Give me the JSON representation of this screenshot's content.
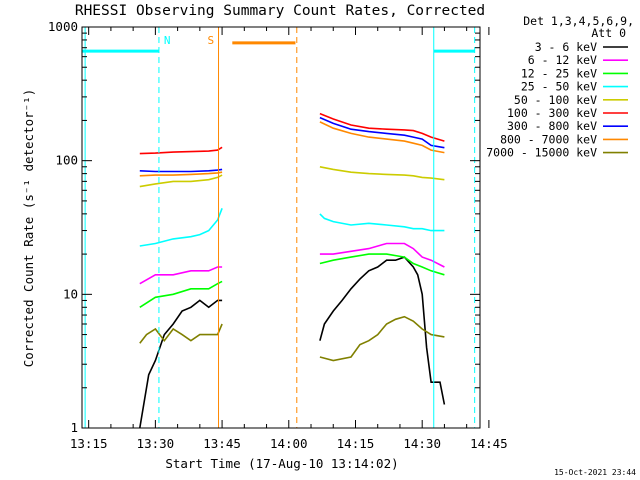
{
  "chart_data": {
    "type": "line",
    "title": "RHESSI Observing Summary Count Rates, Corrected",
    "xlabel": "Start Time (17-Aug-10 13:14:02)",
    "ylabel": "Corrected Count Rate (s⁻¹ detector⁻¹)",
    "y_scale": "log",
    "ylim": [
      1,
      1000
    ],
    "xlim_minutes": [
      13.5,
      103.0
    ],
    "x_ticks": [
      "13:15",
      "13:30",
      "13:45",
      "14:00",
      "14:15",
      "14:30",
      "14:45"
    ],
    "x_tick_minutes": [
      15,
      30,
      45,
      60,
      75,
      90,
      105
    ],
    "y_ticks": [
      "1",
      "10",
      "100",
      "1000"
    ],
    "y_tick_values": [
      1,
      10,
      100,
      1000
    ],
    "legend_header": [
      "Det 1,3,4,5,6,9,",
      "Att 0"
    ],
    "legend_placement": "right",
    "timestamp": "15-Oct-2021 23:44",
    "series": [
      {
        "name": "3 - 6 keV",
        "color": "#000000",
        "points": [
          [
            26.5,
            1.0
          ],
          [
            28.5,
            2.5
          ],
          [
            30,
            3.2
          ],
          [
            32,
            5
          ],
          [
            34,
            6
          ],
          [
            36,
            7.5
          ],
          [
            38,
            8
          ],
          [
            40,
            9
          ],
          [
            42,
            8
          ],
          [
            44,
            9
          ],
          [
            45,
            9
          ],
          [
            46.5,
            null
          ],
          [
            67,
            4.5
          ],
          [
            68,
            6
          ],
          [
            70,
            7.5
          ],
          [
            72,
            9
          ],
          [
            74,
            11
          ],
          [
            76,
            13
          ],
          [
            78,
            15
          ],
          [
            80,
            16
          ],
          [
            82,
            18
          ],
          [
            84,
            18
          ],
          [
            86,
            19
          ],
          [
            88,
            16
          ],
          [
            89,
            14
          ],
          [
            90,
            10
          ],
          [
            91,
            4
          ],
          [
            92,
            2.2
          ],
          [
            94,
            2.2
          ],
          [
            95,
            1.5
          ]
        ]
      },
      {
        "name": "6 - 12 keV",
        "color": "#ff00ff",
        "points": [
          [
            26.5,
            12
          ],
          [
            30,
            14
          ],
          [
            34,
            14
          ],
          [
            38,
            15
          ],
          [
            42,
            15
          ],
          [
            44,
            16
          ],
          [
            45,
            16
          ],
          [
            46.5,
            null
          ],
          [
            67,
            20
          ],
          [
            70,
            20
          ],
          [
            74,
            21
          ],
          [
            78,
            22
          ],
          [
            82,
            24
          ],
          [
            86,
            24
          ],
          [
            88,
            22
          ],
          [
            90,
            19
          ],
          [
            92,
            18
          ],
          [
            95,
            16
          ]
        ]
      },
      {
        "name": "12 - 25 keV",
        "color": "#00ff00",
        "points": [
          [
            26.5,
            8
          ],
          [
            30,
            9.5
          ],
          [
            34,
            10
          ],
          [
            38,
            11
          ],
          [
            42,
            11
          ],
          [
            44,
            12
          ],
          [
            45,
            12.5
          ],
          [
            46.5,
            null
          ],
          [
            67,
            17
          ],
          [
            70,
            18
          ],
          [
            74,
            19
          ],
          [
            78,
            20
          ],
          [
            82,
            20
          ],
          [
            86,
            19
          ],
          [
            88,
            17
          ],
          [
            90,
            16
          ],
          [
            92,
            15
          ],
          [
            95,
            14
          ]
        ]
      },
      {
        "name": "25 - 50 keV",
        "color": "#00ffff",
        "points": [
          [
            26.5,
            23
          ],
          [
            30,
            24
          ],
          [
            34,
            26
          ],
          [
            38,
            27
          ],
          [
            40,
            28
          ],
          [
            42,
            30
          ],
          [
            44,
            36
          ],
          [
            45,
            44
          ],
          [
            46.5,
            null
          ],
          [
            67,
            40
          ],
          [
            68,
            37
          ],
          [
            70,
            35
          ],
          [
            74,
            33
          ],
          [
            78,
            34
          ],
          [
            82,
            33
          ],
          [
            86,
            32
          ],
          [
            88,
            31
          ],
          [
            90,
            31
          ],
          [
            92,
            30
          ],
          [
            95,
            30
          ]
        ]
      },
      {
        "name": "50 - 100 keV",
        "color": "#cccc00",
        "points": [
          [
            26.5,
            64
          ],
          [
            30,
            67
          ],
          [
            34,
            70
          ],
          [
            38,
            70
          ],
          [
            42,
            72
          ],
          [
            44,
            75
          ],
          [
            45,
            78
          ],
          [
            46.5,
            null
          ],
          [
            67,
            90
          ],
          [
            70,
            86
          ],
          [
            74,
            82
          ],
          [
            78,
            80
          ],
          [
            82,
            79
          ],
          [
            86,
            78
          ],
          [
            88,
            77
          ],
          [
            90,
            75
          ],
          [
            92,
            74
          ],
          [
            95,
            72
          ]
        ]
      },
      {
        "name": "100 - 300 keV",
        "color": "#ff0000",
        "points": [
          [
            26.5,
            113
          ],
          [
            30,
            114
          ],
          [
            34,
            116
          ],
          [
            38,
            117
          ],
          [
            42,
            118
          ],
          [
            44,
            120
          ],
          [
            45,
            126
          ],
          [
            46.5,
            null
          ],
          [
            67,
            225
          ],
          [
            70,
            205
          ],
          [
            74,
            185
          ],
          [
            78,
            175
          ],
          [
            82,
            172
          ],
          [
            86,
            170
          ],
          [
            88,
            168
          ],
          [
            90,
            160
          ],
          [
            92,
            150
          ],
          [
            95,
            140
          ]
        ]
      },
      {
        "name": "300 - 800 keV",
        "color": "#0000ff",
        "points": [
          [
            26.5,
            84
          ],
          [
            30,
            83
          ],
          [
            34,
            83
          ],
          [
            38,
            83
          ],
          [
            42,
            84
          ],
          [
            44,
            85
          ],
          [
            45,
            86
          ],
          [
            46.5,
            null
          ],
          [
            67,
            210
          ],
          [
            70,
            190
          ],
          [
            74,
            172
          ],
          [
            78,
            165
          ],
          [
            82,
            160
          ],
          [
            86,
            155
          ],
          [
            88,
            150
          ],
          [
            90,
            145
          ],
          [
            92,
            130
          ],
          [
            95,
            125
          ]
        ]
      },
      {
        "name": "800 - 7000 keV",
        "color": "#ff8800",
        "points": [
          [
            26.5,
            77
          ],
          [
            30,
            78
          ],
          [
            34,
            78
          ],
          [
            38,
            79
          ],
          [
            42,
            80
          ],
          [
            44,
            81
          ],
          [
            45,
            82
          ],
          [
            46.5,
            null
          ],
          [
            67,
            195
          ],
          [
            70,
            175
          ],
          [
            74,
            160
          ],
          [
            78,
            150
          ],
          [
            82,
            145
          ],
          [
            86,
            140
          ],
          [
            88,
            135
          ],
          [
            90,
            130
          ],
          [
            92,
            120
          ],
          [
            95,
            115
          ]
        ]
      },
      {
        "name": "7000 - 15000 keV",
        "color": "#808000",
        "points": [
          [
            26.5,
            4.3
          ],
          [
            28,
            5
          ],
          [
            30,
            5.5
          ],
          [
            32,
            4.5
          ],
          [
            34,
            5.5
          ],
          [
            36,
            5
          ],
          [
            38,
            4.5
          ],
          [
            40,
            5
          ],
          [
            42,
            5
          ],
          [
            44,
            5
          ],
          [
            45,
            6
          ],
          [
            46.5,
            null
          ],
          [
            67,
            3.4
          ],
          [
            70,
            3.2
          ],
          [
            74,
            3.4
          ],
          [
            76,
            4.2
          ],
          [
            78,
            4.5
          ],
          [
            80,
            5
          ],
          [
            82,
            6
          ],
          [
            84,
            6.5
          ],
          [
            86,
            6.8
          ],
          [
            88,
            6.3
          ],
          [
            90,
            5.5
          ],
          [
            92,
            5
          ],
          [
            95,
            4.8
          ]
        ]
      }
    ],
    "annotations": [
      {
        "label": "N",
        "color": "#00ffff",
        "x_minutes": 30.8
      },
      {
        "label": "S",
        "color": "#ff8800",
        "x_minutes": 44.2
      }
    ],
    "flag_bars": [
      {
        "color": "#00ffff",
        "x0": 13.5,
        "x1": 30.8,
        "y": 660
      },
      {
        "color": "#ff8800",
        "x0": 47.3,
        "x1": 61.5,
        "y": 760
      },
      {
        "color": "#00ffff",
        "x0": 92.6,
        "x1": 101.8,
        "y": 660
      }
    ],
    "vertical_markers": [
      {
        "color": "#00ffff",
        "style": "solid",
        "x_minutes": 14.2
      },
      {
        "color": "#00ffff",
        "style": "dashed",
        "x_minutes": 30.8
      },
      {
        "color": "#ff8800",
        "style": "solid",
        "x_minutes": 44.2
      },
      {
        "color": "#ff8800",
        "style": "dashed",
        "x_minutes": 61.8
      },
      {
        "color": "#00ffff",
        "style": "solid",
        "x_minutes": 92.6
      },
      {
        "color": "#00ffff",
        "style": "dashed",
        "x_minutes": 101.8
      }
    ]
  }
}
